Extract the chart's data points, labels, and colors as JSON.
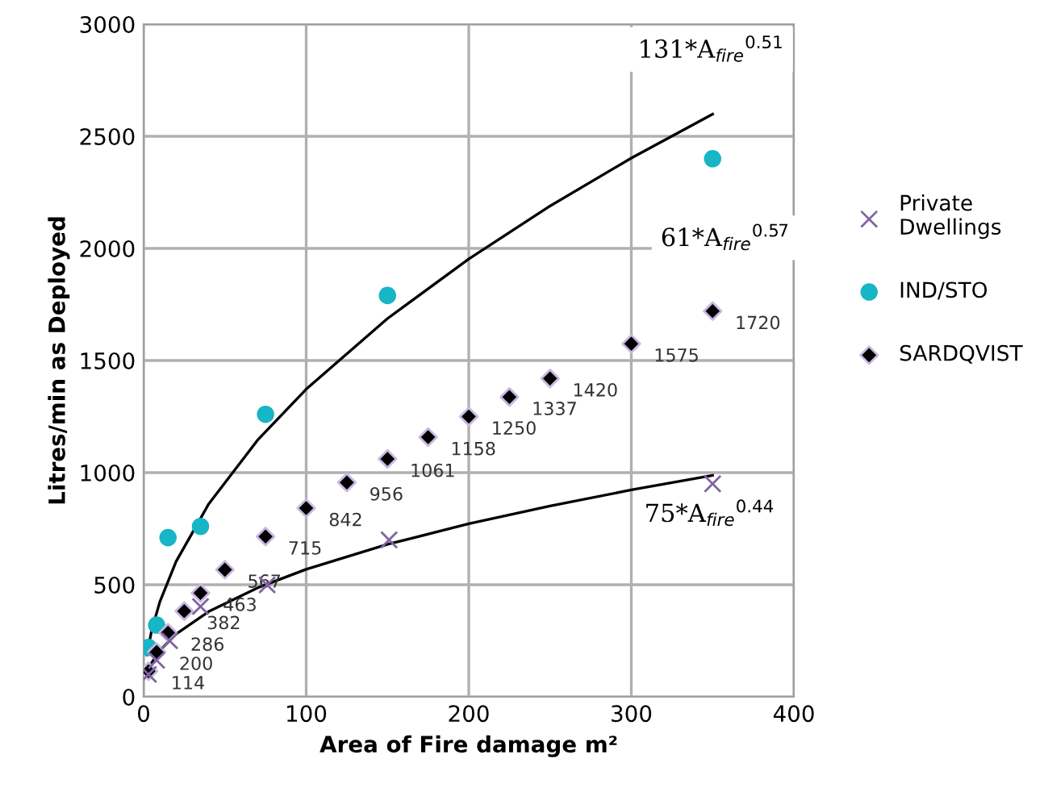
{
  "chart_data": {
    "type": "scatter",
    "xlabel": "Area of Fire damage m²",
    "ylabel": "Litres/min as Deployed",
    "xlim": [
      0,
      400
    ],
    "xticks": [
      0,
      100,
      200,
      300,
      400
    ],
    "ylim": [
      0,
      3000
    ],
    "yticks": [
      0,
      500,
      1000,
      1500,
      2000,
      2500,
      3000
    ],
    "grid": true,
    "legend": "right",
    "series": [
      {
        "name": "Private Dwellings",
        "marker": "cross",
        "color": "#8064a2",
        "x": [
          3,
          8,
          16,
          35,
          76,
          151,
          350
        ],
        "values": [
          100,
          163,
          250,
          403,
          499,
          700,
          950
        ]
      },
      {
        "name": "IND/STO",
        "marker": "circle",
        "color": "#17b5c5",
        "x": [
          3,
          8,
          15,
          35,
          75,
          150,
          350
        ],
        "values": [
          220,
          320,
          710,
          760,
          1260,
          1790,
          2400
        ]
      },
      {
        "name": "SARDQVIST",
        "marker": "diamond",
        "color": "#000000",
        "x": [
          3,
          8,
          15,
          25,
          35,
          50,
          75,
          100,
          125,
          150,
          175,
          200,
          225,
          250,
          300,
          350
        ],
        "values": [
          114,
          200,
          286,
          382,
          463,
          567,
          715,
          842,
          956,
          1061,
          1158,
          1250,
          1337,
          1420,
          1575,
          1720
        ],
        "data_labels": true
      },
      {
        "type": "line",
        "color": "#000000",
        "x": [
          2,
          5,
          10,
          20,
          40,
          70,
          100,
          150,
          200,
          250,
          300,
          350
        ],
        "values": [
          187,
          298,
          424,
          604,
          860,
          1144,
          1372,
          1687,
          1953,
          2189,
          2403,
          2599
        ]
      },
      {
        "type": "line",
        "color": "#000000",
        "x": [
          2,
          5,
          10,
          20,
          40,
          70,
          100,
          150,
          200,
          250,
          300,
          350
        ],
        "values": [
          102,
          152,
          207,
          280,
          380,
          486,
          569,
          680,
          772,
          851,
          923,
          988
        ]
      }
    ],
    "annotations": [
      "131*A$_{fire}$$^{0.51}$",
      "61*A$_{fire}$$^{0.57}$",
      "75*A$_{fire}$$^{0.44}$"
    ]
  }
}
